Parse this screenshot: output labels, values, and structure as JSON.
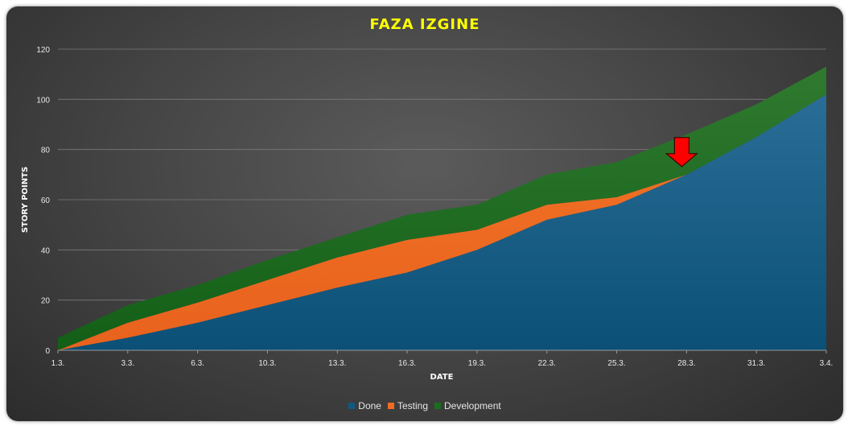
{
  "chart_data": {
    "type": "area",
    "stacked": true,
    "title": "FAZA IZGINE",
    "xlabel": "DATE",
    "ylabel": "STORY POINTS",
    "ylim": [
      0,
      120
    ],
    "yticks": [
      0,
      20,
      40,
      60,
      80,
      100,
      120
    ],
    "x_tick_labels": [
      "1.3.",
      "3.3.",
      "6.3.",
      "10.3.",
      "13.3.",
      "16.3.",
      "19.3.",
      "22.3.",
      "25.3.",
      "28.3.",
      "31.3.",
      "3.4."
    ],
    "grid": true,
    "legend_position": "bottom",
    "series": [
      {
        "name": "Done",
        "color": "#0f5a85",
        "values": [
          0,
          5,
          11,
          18,
          25,
          31,
          40,
          52,
          58,
          70,
          85,
          102
        ]
      },
      {
        "name": "Testing",
        "color": "#f06b22",
        "values": [
          0,
          6,
          8,
          10,
          12,
          13,
          8,
          6,
          3,
          0,
          0,
          0
        ]
      },
      {
        "name": "Development",
        "color": "#1a6e1e",
        "values": [
          5,
          7,
          7,
          8,
          8,
          10,
          10,
          12,
          14,
          16,
          13,
          11
        ]
      }
    ],
    "annotation": {
      "type": "down-arrow",
      "x_index": 9,
      "color": "#ff0000"
    }
  }
}
